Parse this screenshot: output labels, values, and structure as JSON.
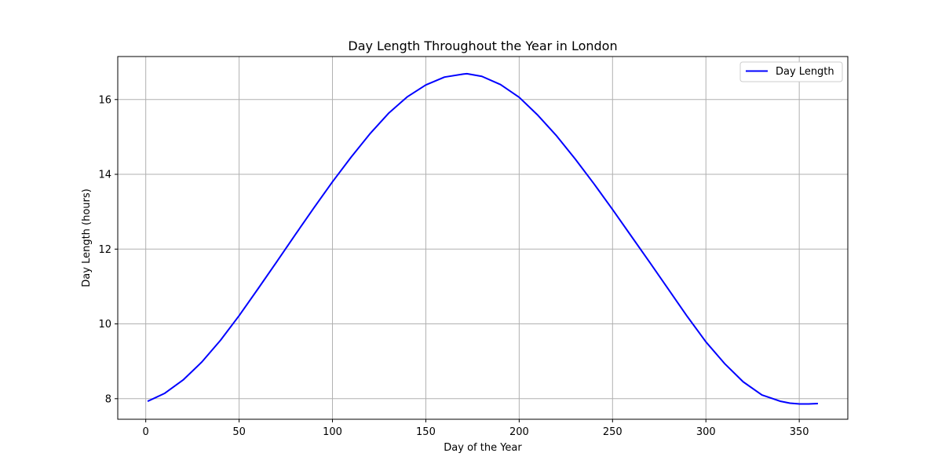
{
  "chart_data": {
    "type": "line",
    "title": "Day Length Throughout the Year in London",
    "xlabel": "Day of the Year",
    "ylabel": "Day Length (hours)",
    "xlim": [
      -15,
      376
    ],
    "ylim": [
      7.45,
      17.15
    ],
    "x_ticks": [
      0,
      50,
      100,
      150,
      200,
      250,
      300,
      350
    ],
    "y_ticks": [
      8,
      10,
      12,
      14,
      16
    ],
    "grid": true,
    "legend_position": "top-right",
    "series": [
      {
        "name": "Day Length",
        "color": "#0000ff",
        "x": [
          1,
          10,
          20,
          30,
          40,
          50,
          60,
          70,
          80,
          90,
          100,
          110,
          120,
          130,
          140,
          150,
          160,
          170,
          172,
          180,
          190,
          200,
          210,
          220,
          230,
          240,
          250,
          260,
          270,
          280,
          290,
          300,
          310,
          320,
          330,
          340,
          345,
          350,
          355,
          360
        ],
        "y": [
          7.93,
          8.14,
          8.5,
          8.98,
          9.56,
          10.22,
          10.93,
          11.65,
          12.38,
          13.1,
          13.8,
          14.46,
          15.08,
          15.63,
          16.07,
          16.39,
          16.6,
          16.68,
          16.69,
          16.62,
          16.4,
          16.06,
          15.58,
          15.03,
          14.41,
          13.75,
          13.06,
          12.35,
          11.64,
          10.92,
          10.2,
          9.52,
          8.94,
          8.45,
          8.1,
          7.93,
          7.88,
          7.86,
          7.86,
          7.87
        ]
      }
    ]
  }
}
